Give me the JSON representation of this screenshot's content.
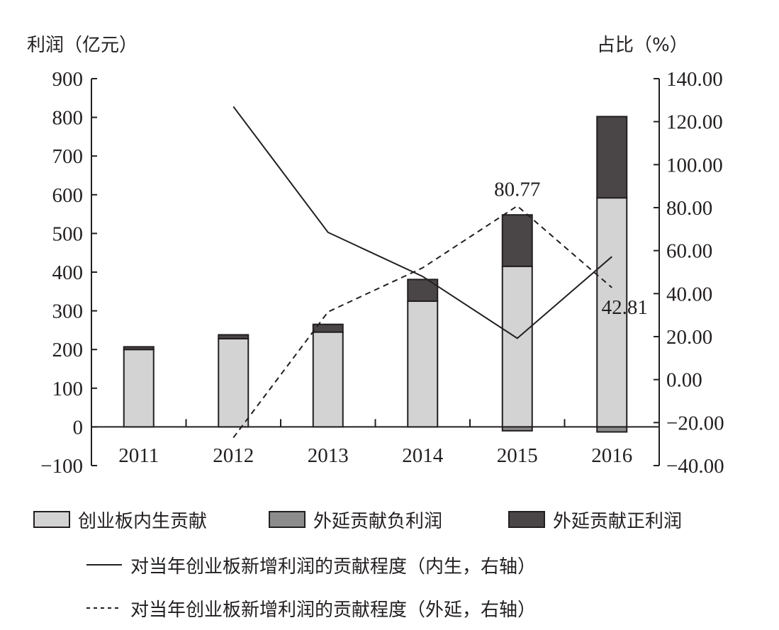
{
  "chart_data": {
    "type": "bar",
    "stacked": true,
    "categories": [
      "2011",
      "2012",
      "2013",
      "2014",
      "2015",
      "2016"
    ],
    "left_axis": {
      "label": "利润（亿元）",
      "range": [
        -100,
        900
      ],
      "ticks": [
        "900",
        "800",
        "700",
        "600",
        "500",
        "400",
        "300",
        "200",
        "100",
        "0",
        "−100"
      ],
      "tick_values": [
        900,
        800,
        700,
        600,
        500,
        400,
        300,
        200,
        100,
        0,
        -100
      ]
    },
    "right_axis": {
      "label": "占比（%）",
      "range": [
        -40,
        140
      ],
      "ticks": [
        "140.00",
        "120.00",
        "100.00",
        "80.00",
        "60.00",
        "40.00",
        "20.00",
        "0.00",
        "−20.00",
        "−40.00"
      ],
      "tick_values": [
        140,
        120,
        100,
        80,
        60,
        40,
        20,
        0,
        -20,
        -40
      ]
    },
    "series": [
      {
        "name": "创业板内生贡献",
        "type": "bar",
        "color": "#d3d3d3",
        "values": [
          200,
          228,
          245,
          325,
          415,
          592
        ]
      },
      {
        "name": "外延贡献负利润",
        "type": "bar",
        "color": "#8c8c8c",
        "values": [
          0,
          0,
          0,
          0,
          -10,
          -13
        ]
      },
      {
        "name": "外延贡献正利润",
        "type": "bar",
        "color": "#4a4546",
        "values": [
          7,
          10,
          20,
          56,
          133,
          210
        ]
      },
      {
        "name": "对当年创业板新增利润的贡献程度（内生，右轴）",
        "type": "line",
        "dash": false,
        "axis": "right",
        "values": [
          null,
          127,
          68.5,
          48,
          19.23,
          57.19
        ]
      },
      {
        "name": "对当年创业板新增利润的贡献程度（外延，右轴）",
        "type": "line",
        "dash": true,
        "axis": "right",
        "values": [
          null,
          -27,
          31.5,
          52,
          80.77,
          42.81
        ]
      }
    ],
    "annotations": [
      "80.77",
      "42.81"
    ],
    "legend_placement": "bottom"
  }
}
